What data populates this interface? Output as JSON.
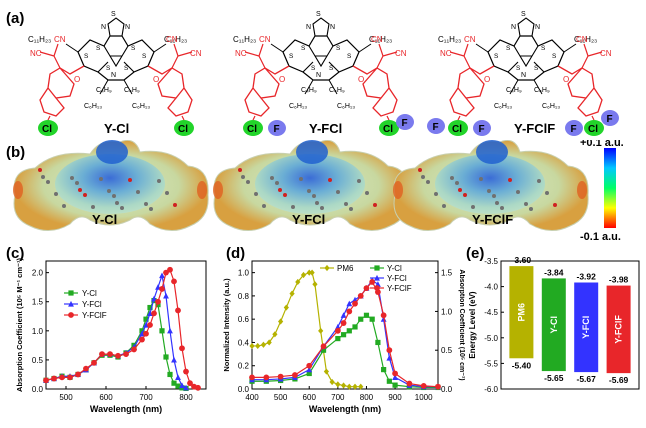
{
  "panels": {
    "a": "(a)",
    "b": "(b)",
    "c": "(c)",
    "d": "(d)",
    "e": "(e)"
  },
  "molecules": {
    "names": [
      "Y-Cl",
      "Y-FCl",
      "Y-FClF"
    ],
    "atom_labels": {
      "cl": "Cl",
      "f": "F",
      "s": "S",
      "n": "N",
      "o": "O",
      "nc": "NC",
      "cn": "CN"
    },
    "chains": {
      "c11": "C₁₁H₂₃",
      "c6": "C₆H₁₃",
      "c4": "C₄H₉"
    }
  },
  "esp": {
    "names": [
      "Y-Cl",
      "Y-FCl",
      "Y-FClF"
    ],
    "scale_max": "+0.1 a.u.",
    "scale_min": "-0.1 a.u."
  },
  "colors": {
    "red": "#e8262a",
    "green": "#22aa22",
    "blue": "#3333ff",
    "pm6": "#b5b200",
    "cl_bg": "#22d42a",
    "f_bg": "#7a7aee"
  },
  "chart_data": [
    {
      "type": "line",
      "panel": "(c)",
      "xlabel": "Wavelength (nm)",
      "ylabel": "Absorption Coefficient (10⁵ M⁻¹ cm⁻¹)",
      "xlim": [
        450,
        850
      ],
      "ylim": [
        0,
        2.2
      ],
      "xticks": [
        "500",
        "600",
        "700",
        "800"
      ],
      "yticks": [
        "0.0",
        "0.5",
        "1.0",
        "1.5",
        "2.0"
      ],
      "legend": "top-left",
      "series": [
        {
          "name": "Y-Cl",
          "color": "#22aa22",
          "marker": "square",
          "x": [
            450,
            470,
            490,
            510,
            530,
            550,
            570,
            590,
            610,
            630,
            650,
            670,
            690,
            700,
            710,
            720,
            730,
            740,
            750,
            760,
            770,
            780,
            790,
            800
          ],
          "y": [
            0.15,
            0.18,
            0.22,
            0.2,
            0.25,
            0.33,
            0.45,
            0.58,
            0.58,
            0.55,
            0.62,
            0.75,
            1.0,
            1.2,
            1.4,
            1.52,
            1.45,
            1.0,
            0.55,
            0.25,
            0.1,
            0.05,
            0.02,
            0.01
          ]
        },
        {
          "name": "Y-FCl",
          "color": "#3333ff",
          "marker": "triangle",
          "x": [
            450,
            470,
            490,
            510,
            530,
            550,
            570,
            590,
            610,
            630,
            650,
            670,
            690,
            700,
            710,
            720,
            730,
            740,
            750,
            760,
            770,
            780,
            790,
            800
          ],
          "y": [
            0.15,
            0.18,
            0.22,
            0.22,
            0.25,
            0.33,
            0.45,
            0.6,
            0.6,
            0.57,
            0.62,
            0.72,
            0.95,
            1.1,
            1.3,
            1.55,
            1.75,
            1.95,
            1.6,
            1.0,
            0.5,
            0.2,
            0.06,
            0.02
          ]
        },
        {
          "name": "Y-FClF",
          "color": "#e8262a",
          "marker": "circle",
          "x": [
            450,
            470,
            490,
            510,
            530,
            550,
            570,
            590,
            610,
            630,
            650,
            670,
            690,
            700,
            710,
            720,
            730,
            740,
            750,
            760,
            770,
            780,
            790,
            800,
            810,
            820,
            830
          ],
          "y": [
            0.15,
            0.18,
            0.2,
            0.2,
            0.25,
            0.35,
            0.45,
            0.6,
            0.6,
            0.57,
            0.6,
            0.68,
            0.85,
            0.95,
            1.1,
            1.3,
            1.5,
            1.72,
            2.0,
            2.05,
            1.85,
            1.35,
            0.7,
            0.3,
            0.1,
            0.04,
            0.02
          ]
        }
      ]
    },
    {
      "type": "line",
      "panel": "(d)",
      "xlabel": "Wavelength (nm)",
      "ylabel": "Normalized Intensity (a.u.)",
      "y2label": "Absorption Coefficient (10⁵ cm⁻¹)",
      "xlim": [
        400,
        1050
      ],
      "ylim": [
        0,
        1.1
      ],
      "y2lim": [
        0,
        1.65
      ],
      "xticks": [
        "400",
        "500",
        "600",
        "700",
        "800",
        "900",
        "1000"
      ],
      "yticks": [
        "0.0",
        "0.2",
        "0.4",
        "0.6",
        "0.8",
        "1.0"
      ],
      "y2ticks": [
        "0.0",
        "0.5",
        "1.0",
        "1.5"
      ],
      "legend": "top-right",
      "series": [
        {
          "name": "PM6",
          "color": "#b5b200",
          "marker": "diamond",
          "axis": "left",
          "x": [
            400,
            420,
            440,
            460,
            480,
            500,
            520,
            540,
            560,
            580,
            600,
            610,
            620,
            640,
            660,
            680,
            700,
            720,
            740,
            760,
            780
          ],
          "y": [
            0.37,
            0.37,
            0.38,
            0.4,
            0.47,
            0.58,
            0.7,
            0.82,
            0.92,
            0.98,
            1.0,
            1.0,
            0.9,
            0.5,
            0.15,
            0.06,
            0.04,
            0.03,
            0.02,
            0.02,
            0.02
          ]
        },
        {
          "name": "Y-Cl",
          "color": "#22aa22",
          "marker": "square",
          "axis": "right",
          "x": [
            400,
            450,
            500,
            550,
            600,
            650,
            700,
            720,
            740,
            760,
            780,
            800,
            820,
            840,
            860,
            880,
            900,
            950,
            1000,
            1050
          ],
          "y": [
            0.1,
            0.1,
            0.11,
            0.13,
            0.2,
            0.5,
            0.65,
            0.7,
            0.75,
            0.8,
            0.9,
            0.95,
            0.9,
            0.6,
            0.25,
            0.1,
            0.05,
            0.03,
            0.02,
            0.02
          ]
        },
        {
          "name": "Y-FCl",
          "color": "#3333ff",
          "marker": "triangle",
          "axis": "right",
          "x": [
            400,
            450,
            500,
            550,
            600,
            650,
            700,
            720,
            740,
            760,
            780,
            800,
            820,
            840,
            860,
            880,
            900,
            950,
            1000,
            1050
          ],
          "y": [
            0.12,
            0.12,
            0.13,
            0.15,
            0.25,
            0.55,
            0.8,
            0.95,
            1.1,
            1.15,
            1.2,
            1.3,
            1.4,
            1.35,
            0.9,
            0.4,
            0.15,
            0.05,
            0.03,
            0.03
          ]
        },
        {
          "name": "Y-FClF",
          "color": "#e8262a",
          "marker": "circle",
          "axis": "right",
          "x": [
            400,
            450,
            500,
            550,
            600,
            650,
            700,
            720,
            740,
            760,
            780,
            800,
            820,
            840,
            860,
            880,
            900,
            950,
            1000,
            1050
          ],
          "y": [
            0.15,
            0.15,
            0.16,
            0.18,
            0.3,
            0.55,
            0.75,
            0.85,
            1.0,
            1.1,
            1.2,
            1.3,
            1.38,
            1.25,
            0.95,
            0.5,
            0.2,
            0.07,
            0.04,
            0.03
          ]
        }
      ]
    },
    {
      "type": "bar",
      "panel": "(e)",
      "ylabel": "Energy Level (eV)",
      "ylim": [
        -6.0,
        -3.5
      ],
      "yticks": [
        "-3.5",
        "-4.0",
        "-4.5",
        "-5.0",
        "-5.5",
        "-6.0"
      ],
      "categories": [
        "PM6",
        "Y-Cl",
        "Y-FCl",
        "Y-FClF"
      ],
      "lumo": [
        -3.6,
        -3.84,
        -3.92,
        -3.98
      ],
      "homo": [
        -5.4,
        -5.65,
        -5.67,
        -5.69
      ],
      "lumo_labels": [
        "-3.60",
        "-3.84",
        "-3.92",
        "-3.98"
      ],
      "homo_labels": [
        "-5.40",
        "-5.65",
        "-5.67",
        "-5.69"
      ],
      "colors": [
        "#b5b200",
        "#22aa22",
        "#3333ff",
        "#e8262a"
      ]
    }
  ]
}
